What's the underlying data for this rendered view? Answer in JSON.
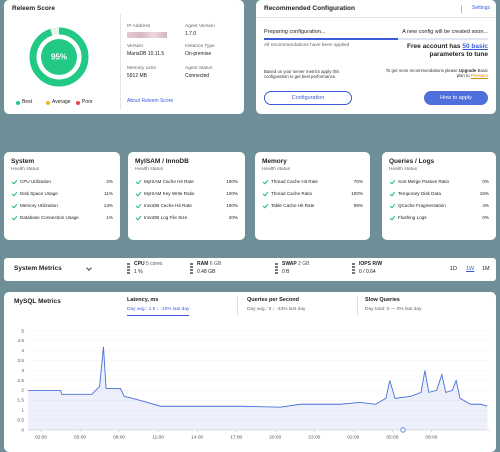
{
  "score_card": {
    "title": "Releem Score",
    "score": 95,
    "score_label": "95%",
    "legend": [
      "Best",
      "Average",
      "Poor"
    ],
    "ip_label": "IP Address",
    "info": [
      {
        "label": "Agent Version",
        "value": "1.7.0"
      },
      {
        "label": "Version",
        "value": "MariaDB 10.11.5"
      },
      {
        "label": "Instance Type",
        "value": "On-premise"
      },
      {
        "label": "Memory Limit",
        "value": "5912 MB"
      },
      {
        "label": "Agent Status",
        "value": "Connected"
      }
    ],
    "link": "About Releem Score"
  },
  "config_card": {
    "title": "Recommended Configuration",
    "settings": "Settings",
    "status": "Preparing configuration...",
    "status_note": "A new config will be created soon...",
    "applied": "All recommendations have been applied",
    "free_prefix": "Free account has",
    "free_highlight": "50 basic",
    "free_suffix": "parameters to tune",
    "advice": "Based on your server metrics apply this configuration to get best performance.",
    "upgrade_prefix": "To get more recommendations please",
    "upgrade_link": "Upgrade",
    "upgrade_middle": "Basic plan to",
    "upgrade_target": "Premium",
    "buttons": [
      "Configuration",
      "How to apply"
    ]
  },
  "health_cards": [
    {
      "title": "System",
      "subtitle": "Health status",
      "items": [
        {
          "name": "CPU Utilization",
          "value": "2%"
        },
        {
          "name": "Disk Space Usage",
          "value": "11%"
        },
        {
          "name": "Memory Utilization",
          "value": "13%"
        },
        {
          "name": "Database Connection Usage",
          "value": "1%"
        }
      ]
    },
    {
      "title": "MyISAM / InnoDB",
      "subtitle": "Health status",
      "items": [
        {
          "name": "MyISAM Cache Hit Rate",
          "value": "100%"
        },
        {
          "name": "MyISAM Key Write Ratio",
          "value": "100%"
        },
        {
          "name": "InnoDB Cache Hit Rate",
          "value": "100%"
        },
        {
          "name": "InnoDB Log File Size",
          "value": "20%"
        }
      ]
    },
    {
      "title": "Memory",
      "subtitle": "Health status",
      "items": [
        {
          "name": "Thread Cache Hit Rate",
          "value": "70%"
        },
        {
          "name": "Thread Cache Ratio",
          "value": "100%"
        },
        {
          "name": "Table Cache Hit Rate",
          "value": "99%"
        }
      ]
    },
    {
      "title": "Queries / Logs",
      "subtitle": "Health status",
      "items": [
        {
          "name": "Sort Merge Passes Ratio",
          "value": "0%"
        },
        {
          "name": "Temporary Disk Data",
          "value": "16%"
        },
        {
          "name": "QCache Fragmentation",
          "value": "4%"
        },
        {
          "name": "Flushing Logs",
          "value": "0%"
        }
      ]
    }
  ],
  "system_metrics": {
    "title": "System Metrics",
    "items": [
      {
        "name": "CPU",
        "detail": "5 cores",
        "value": "1 %"
      },
      {
        "name": "RAM",
        "detail": "6 GB",
        "value": "0.48 GB"
      },
      {
        "name": "SWAP",
        "detail": "2 GB",
        "value": "0 B"
      },
      {
        "name": "IOPS R/W",
        "value": "0 / 0.64"
      }
    ],
    "ranges": [
      "1D",
      "1W",
      "1M"
    ]
  },
  "mysql_metrics": {
    "title": "MySQL Metrics",
    "tabs": [
      {
        "name": "Latency, ms",
        "summary": "Day avg.: 1.5 ↓ -10% last day"
      },
      {
        "name": "Queries per Second",
        "summary": "Day avg.: 5 ↓ -33% last day"
      },
      {
        "name": "Slow Queries",
        "summary": "Day total: 0 — 0% last day"
      }
    ]
  },
  "chart_data": {
    "type": "line",
    "color": "#4a6fd8",
    "x": [
      -1.0,
      1.5,
      1.6,
      3.9,
      4.5,
      4.8,
      5.0,
      6.1,
      6.4,
      7.6,
      9.2,
      12.2,
      15.3,
      18.4,
      19.9,
      23.0,
      24.5,
      25.7,
      26.5,
      26.8,
      27.2,
      28.4,
      29.2,
      29.5,
      29.8,
      30.4,
      30.8,
      31.1,
      31.6,
      31.9,
      32.2,
      33.0,
      33.8,
      34.3
    ],
    "values": [
      2.0,
      2.0,
      1.8,
      1.8,
      2.2,
      4.2,
      2.1,
      2.1,
      1.7,
      1.5,
      1.2,
      1.2,
      1.2,
      1.15,
      1.3,
      1.3,
      1.4,
      1.3,
      1.6,
      2.5,
      1.6,
      1.7,
      1.9,
      3.0,
      1.9,
      2.0,
      2.8,
      1.9,
      2.0,
      2.5,
      1.6,
      1.3,
      1.3,
      1.2
    ],
    "xlim": [
      -1,
      34.5
    ],
    "xticks": [
      {
        "value": 0,
        "label": "02:00"
      },
      {
        "value": 3,
        "label": "05:00"
      },
      {
        "value": 6,
        "label": "08:00"
      },
      {
        "value": 9,
        "label": "11:00"
      },
      {
        "value": 12,
        "label": "14:00"
      },
      {
        "value": 15,
        "label": "17:00"
      },
      {
        "value": 18,
        "label": "20:00"
      },
      {
        "value": 21,
        "label": "23:00"
      },
      {
        "value": 24,
        "label": "02:00"
      },
      {
        "value": 27,
        "label": "05:00"
      },
      {
        "value": 30,
        "label": "08:00"
      }
    ],
    "ylim": [
      0,
      5
    ],
    "yticks": [
      0,
      0.5,
      1,
      1.5,
      2,
      2.5,
      3,
      3.5,
      4,
      4.5,
      5
    ],
    "grid": true
  }
}
